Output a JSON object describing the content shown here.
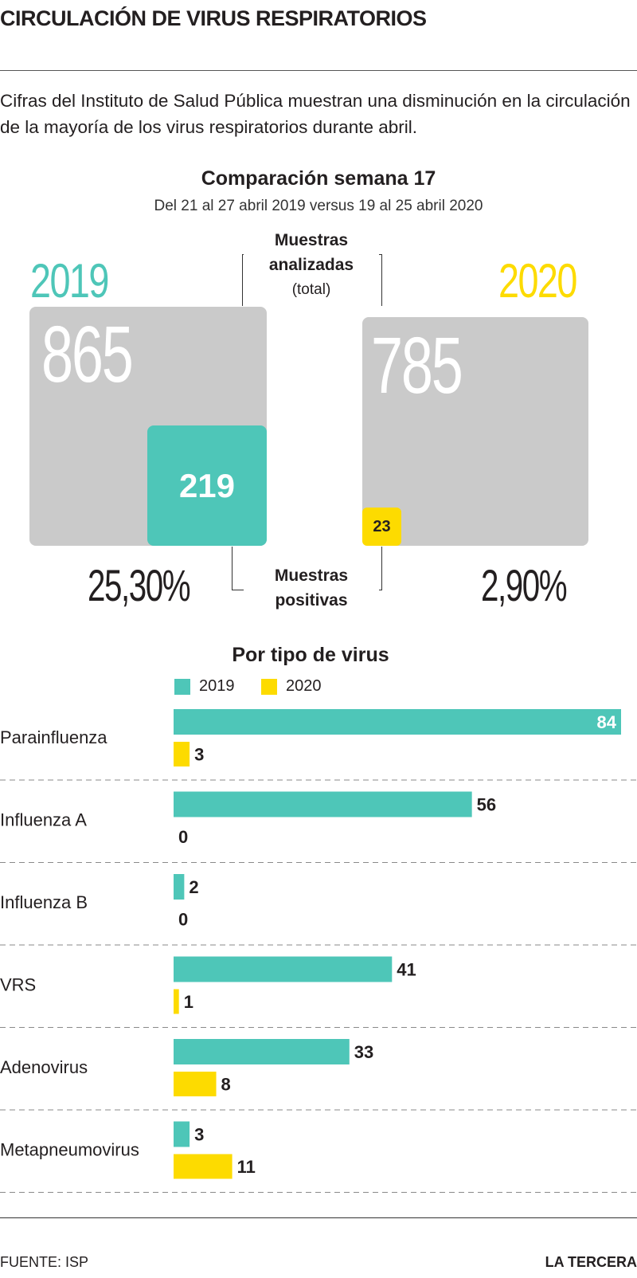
{
  "title": "CIRCULACIÓN DE VIRUS RESPIRATORIOS",
  "intro": "Cifras del Instituto de Salud Pública muestran una disminución en la circulación de la mayoría de los virus respiratorios durante abril.",
  "comparison": {
    "title": "Comparación semana 17",
    "subtitle": "Del 21 al 27 abril 2019 versus 19 al 25 abril 2020",
    "analyzed_label_1": "Muestras",
    "analyzed_label_2": "analizadas",
    "analyzed_label_3": "(total)",
    "positive_label_1": "Muestras",
    "positive_label_2": "positivas",
    "y2019": {
      "year": "2019",
      "total": "865",
      "positive": "219",
      "pct": "25,30%"
    },
    "y2020": {
      "year": "2020",
      "total": "785",
      "positive": "23",
      "pct": "2,90%"
    }
  },
  "colors": {
    "c2019": "#4ec6b8",
    "c2020": "#fddb00",
    "box": "#cacaca"
  },
  "chart_data": {
    "type": "bar",
    "title": "Por tipo de virus",
    "categories": [
      "Parainfluenza",
      "Influenza A",
      "Influenza B",
      "VRS",
      "Adenovirus",
      "Metapneumovirus"
    ],
    "series": [
      {
        "name": "2019",
        "values": [
          84,
          56,
          2,
          41,
          33,
          3
        ]
      },
      {
        "name": "2020",
        "values": [
          3,
          0,
          0,
          1,
          8,
          11
        ]
      }
    ],
    "orientation": "horizontal",
    "legend": "top"
  },
  "footer": {
    "source": "FUENTE: ISP",
    "brand": "LA TERCERA"
  }
}
